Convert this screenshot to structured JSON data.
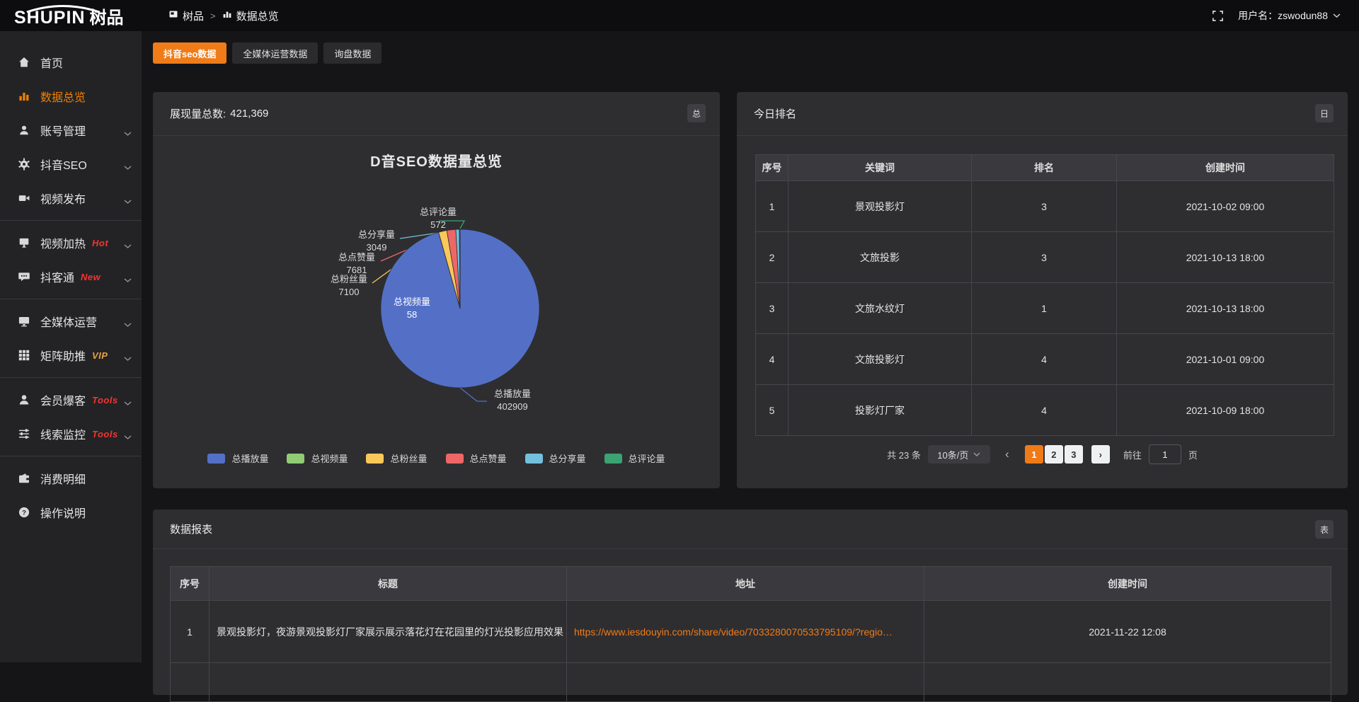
{
  "topbar": {
    "logo_en": "SHUPIN",
    "logo_cn": "树品",
    "breadcrumb": [
      {
        "label": "树品"
      },
      {
        "label": "数据总览"
      }
    ],
    "separator": ">",
    "username": "用户名：zswodun88"
  },
  "sidebar": {
    "items": [
      {
        "icon": "home",
        "label": "首页",
        "active": false,
        "chevron": false,
        "badge": null,
        "divider_after": false
      },
      {
        "icon": "chart",
        "label": "数据总览",
        "active": true,
        "chevron": false,
        "badge": null,
        "divider_after": false
      },
      {
        "icon": "user",
        "label": "账号管理",
        "active": false,
        "chevron": true,
        "badge": null,
        "divider_after": false
      },
      {
        "icon": "gear",
        "label": "抖音SEO",
        "active": false,
        "chevron": true,
        "badge": null,
        "divider_after": false
      },
      {
        "icon": "video",
        "label": "视频发布",
        "active": false,
        "chevron": true,
        "badge": null,
        "divider_after": true
      },
      {
        "icon": "screen",
        "label": "视频加热",
        "active": false,
        "chevron": true,
        "badge": "Hot",
        "badge_color": "#f5342e",
        "divider_after": false
      },
      {
        "icon": "chat",
        "label": "抖客通",
        "active": false,
        "chevron": true,
        "badge": "New",
        "badge_color": "#f5342e",
        "divider_after": true
      },
      {
        "icon": "monitor",
        "label": "全媒体运营",
        "active": false,
        "chevron": true,
        "badge": null,
        "divider_after": false
      },
      {
        "icon": "grid",
        "label": "矩阵助推",
        "active": false,
        "chevron": true,
        "badge": "VIP",
        "badge_color": "#e8a23d",
        "divider_after": true
      },
      {
        "icon": "member",
        "label": "会员爆客",
        "active": false,
        "chevron": true,
        "badge": "Tools",
        "badge_color": "#f5342e",
        "divider_after": false
      },
      {
        "icon": "sliders",
        "label": "线索监控",
        "active": false,
        "chevron": true,
        "badge": "Tools",
        "badge_color": "#f5342e",
        "divider_after": true
      },
      {
        "icon": "wallet",
        "label": "消费明细",
        "active": false,
        "chevron": false,
        "badge": null,
        "divider_after": false
      },
      {
        "icon": "help",
        "label": "操作说明",
        "active": false,
        "chevron": false,
        "badge": null,
        "divider_after": false
      }
    ]
  },
  "tabs": [
    {
      "label": "抖音seo数据",
      "active": true
    },
    {
      "label": "全媒体运营数据",
      "active": false
    },
    {
      "label": "询盘数据",
      "active": false
    }
  ],
  "overview_panel": {
    "header_label": "展现量总数:",
    "header_value": "421,369",
    "corner_badge": "总"
  },
  "chart_data": {
    "type": "pie",
    "title": "D音SEO数据量总览",
    "legend_position": "bottom",
    "total": 421369,
    "series": [
      {
        "name": "总播放量",
        "value": 402909,
        "color": "#5470c6"
      },
      {
        "name": "总视频量",
        "value": 58,
        "color": "#91cc75"
      },
      {
        "name": "总粉丝量",
        "value": 7100,
        "color": "#fac858"
      },
      {
        "name": "总点赞量",
        "value": 7681,
        "color": "#ee6666"
      },
      {
        "name": "总分享量",
        "value": 3049,
        "color": "#73c0de"
      },
      {
        "name": "总评论量",
        "value": 572,
        "color": "#3ba272"
      }
    ]
  },
  "ranking_panel": {
    "title": "今日排名",
    "corner_badge": "日",
    "columns": [
      "序号",
      "关键词",
      "排名",
      "创建时间"
    ],
    "rows": [
      [
        "1",
        "景观投影灯",
        "3",
        "2021-10-02 09:00"
      ],
      [
        "2",
        "文旅投影",
        "3",
        "2021-10-13 18:00"
      ],
      [
        "3",
        "文旅水纹灯",
        "1",
        "2021-10-13 18:00"
      ],
      [
        "4",
        "文旅投影灯",
        "4",
        "2021-10-01 09:00"
      ],
      [
        "5",
        "投影灯厂家",
        "4",
        "2021-10-09 18:00"
      ]
    ],
    "pagination": {
      "total_label": "共 23 条",
      "page_size": "10条/页",
      "prev": "‹",
      "next": "›",
      "pages": [
        "1",
        "2",
        "3"
      ],
      "active_page": "1",
      "goto_label": "前往",
      "goto_value": "1",
      "page_label": "页"
    }
  },
  "report_panel": {
    "title": "数据报表",
    "corner_badge": "表",
    "columns": [
      "序号",
      "标题",
      "地址",
      "创建时间"
    ],
    "rows": [
      {
        "index": "1",
        "title": "景观投影灯，夜游景观投影灯厂家展示展示落花灯在花园里的灯光投影应用效果 #",
        "url": "https://www.iesdouyin.com/share/video/7033280070533795109/?regio…",
        "time": "2021-11-22 12:08"
      }
    ]
  }
}
